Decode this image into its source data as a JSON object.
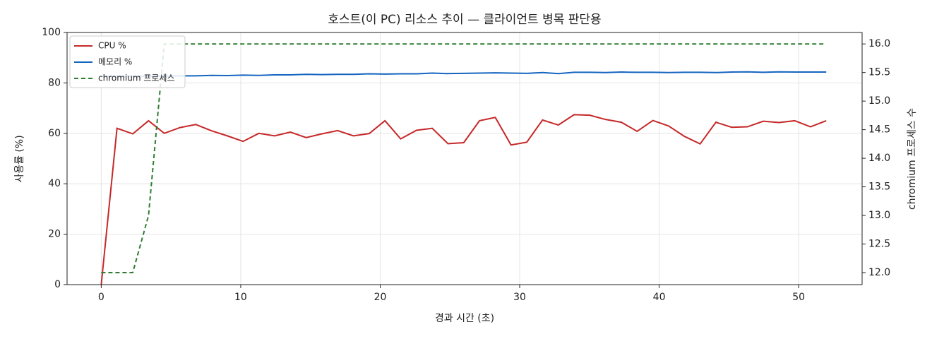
{
  "chart_data": {
    "type": "line",
    "title": "호스트(이 PC) 리소스 추이 — 클라이언트 병목 판단용",
    "x_label": "경과 시간 (초)",
    "y_label": "사용률 (%)",
    "y2_label": "chromium 프로세스 수",
    "x": [
      0,
      1.13,
      2.26,
      3.39,
      4.52,
      5.65,
      6.78,
      7.91,
      9.04,
      10.17,
      11.3,
      12.43,
      13.56,
      14.69,
      15.82,
      16.95,
      18.08,
      19.21,
      20.34,
      21.47,
      22.6,
      23.73,
      24.86,
      25.99,
      27.12,
      28.25,
      29.38,
      30.51,
      31.64,
      32.77,
      33.9,
      35.03,
      36.16,
      37.29,
      38.42,
      39.55,
      40.68,
      41.81,
      42.94,
      44.07,
      45.2,
      46.33,
      47.46,
      48.59,
      49.72,
      50.85,
      51.98
    ],
    "series": [
      {
        "name": "CPU %",
        "color": "#c62828",
        "dash": false,
        "values": [
          0,
          62,
          59.8,
          65,
          60,
          62.3,
          63.5,
          61,
          59,
          56.8,
          60,
          59,
          60.5,
          58.3,
          59.8,
          61.1,
          59,
          59.9,
          65,
          57.8,
          61.2,
          62,
          55.9,
          56.3,
          65,
          66.3,
          55.4,
          56.5,
          65.3,
          63.3,
          67.4,
          67.2,
          65.5,
          64.4,
          60.8,
          65.1,
          62.9,
          58.8,
          55.8,
          64.4,
          62.4,
          62.6,
          64.8,
          64.3,
          65,
          62.6,
          65
        ]
      },
      {
        "name": "메모리 %",
        "color": "#1565c0",
        "dash": false,
        "values": [
          82.5,
          82.6,
          82.6,
          82.7,
          82.7,
          82.8,
          82.8,
          83.0,
          82.9,
          83.1,
          83.0,
          83.2,
          83.2,
          83.4,
          83.3,
          83.4,
          83.4,
          83.6,
          83.5,
          83.6,
          83.6,
          83.9,
          83.7,
          83.8,
          83.9,
          84.0,
          83.9,
          83.8,
          84.1,
          83.7,
          84.2,
          84.2,
          84.1,
          84.3,
          84.2,
          84.2,
          84.1,
          84.2,
          84.2,
          84.1,
          84.3,
          84.4,
          84.2,
          84.4,
          84.3,
          84.3,
          84.3
        ]
      },
      {
        "name": "chromium 프로세스",
        "color": "#2e7d32",
        "dash": true,
        "axis": "y2",
        "values": [
          12,
          12,
          12,
          13,
          16,
          16,
          16,
          16,
          16,
          16,
          16,
          16,
          16,
          16,
          16,
          16,
          16,
          16,
          16,
          16,
          16,
          16,
          16,
          16,
          16,
          16,
          16,
          16,
          16,
          16,
          16,
          16,
          16,
          16,
          16,
          16,
          16,
          16,
          16,
          16,
          16,
          16,
          16,
          16,
          16,
          16,
          16
        ]
      }
    ],
    "xlim": [
      -2.45,
      54.55
    ],
    "xticks": [
      0,
      10,
      20,
      30,
      40,
      50
    ],
    "ylim": [
      0,
      100
    ],
    "yticks": [
      0,
      20,
      40,
      60,
      80,
      100
    ],
    "y2lim": [
      11.79,
      16.2
    ],
    "y2ticks": [
      {
        "value": 12,
        "label": "12.0"
      },
      12.5,
      {
        "value": 13,
        "label": "13.0"
      },
      13.5,
      {
        "value": 14,
        "label": "14.0"
      },
      14.5,
      {
        "value": 15,
        "label": "15.0"
      },
      15.5,
      {
        "value": 16,
        "label": "16.0"
      }
    ],
    "grid": true,
    "legend": "upper-left"
  }
}
